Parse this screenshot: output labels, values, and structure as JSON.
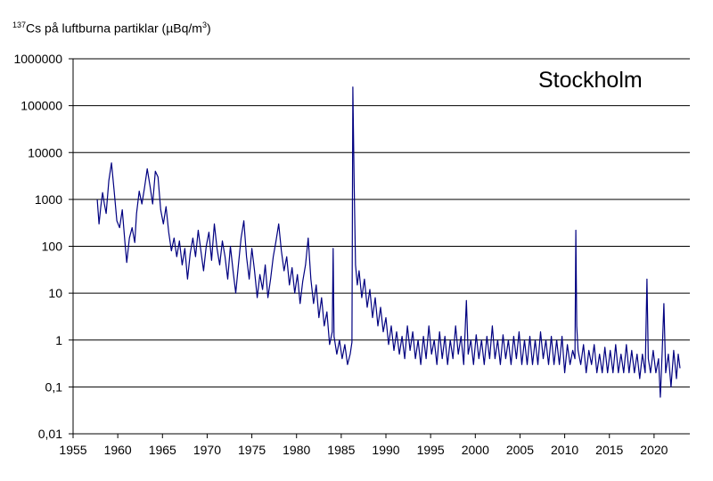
{
  "chart_data": {
    "type": "line",
    "ylabel": {
      "superscript": "137",
      "text": "Cs på luftburna  partiklar (µBq/m",
      "unit_superscript": "3",
      "close": ")"
    },
    "annotation": "Stockholm",
    "y_scale": "log",
    "ylim": [
      0.01,
      1000000
    ],
    "xlim": [
      1955,
      2024
    ],
    "grid": "horizontal",
    "y_ticks": [
      {
        "value": 1000000,
        "label": "1000000"
      },
      {
        "value": 100000,
        "label": "100000"
      },
      {
        "value": 10000,
        "label": "10000"
      },
      {
        "value": 1000,
        "label": "1000"
      },
      {
        "value": 100,
        "label": "100"
      },
      {
        "value": 10,
        "label": "10"
      },
      {
        "value": 1,
        "label": "1"
      },
      {
        "value": 0.1,
        "label": "0,1"
      },
      {
        "value": 0.01,
        "label": "0,01"
      }
    ],
    "x_ticks": [
      1955,
      1960,
      1965,
      1970,
      1975,
      1980,
      1985,
      1990,
      1995,
      2000,
      2005,
      2010,
      2015,
      2020
    ],
    "series": [
      {
        "color": "#000080",
        "points": [
          [
            1957.7,
            1000
          ],
          [
            1957.9,
            300
          ],
          [
            1958.1,
            700
          ],
          [
            1958.3,
            1400
          ],
          [
            1958.5,
            800
          ],
          [
            1958.7,
            500
          ],
          [
            1959.0,
            2500
          ],
          [
            1959.3,
            6000
          ],
          [
            1959.6,
            1500
          ],
          [
            1959.9,
            350
          ],
          [
            1960.2,
            250
          ],
          [
            1960.5,
            600
          ],
          [
            1960.8,
            120
          ],
          [
            1961.0,
            45
          ],
          [
            1961.3,
            150
          ],
          [
            1961.6,
            250
          ],
          [
            1961.9,
            120
          ],
          [
            1962.1,
            500
          ],
          [
            1962.4,
            1500
          ],
          [
            1962.7,
            800
          ],
          [
            1963.0,
            1800
          ],
          [
            1963.3,
            4500
          ],
          [
            1963.6,
            2000
          ],
          [
            1963.9,
            800
          ],
          [
            1964.2,
            4000
          ],
          [
            1964.5,
            3000
          ],
          [
            1964.8,
            600
          ],
          [
            1965.1,
            300
          ],
          [
            1965.4,
            700
          ],
          [
            1965.7,
            200
          ],
          [
            1966.0,
            80
          ],
          [
            1966.3,
            150
          ],
          [
            1966.6,
            60
          ],
          [
            1966.9,
            130
          ],
          [
            1967.2,
            40
          ],
          [
            1967.5,
            90
          ],
          [
            1967.8,
            20
          ],
          [
            1968.1,
            70
          ],
          [
            1968.4,
            150
          ],
          [
            1968.7,
            60
          ],
          [
            1969.0,
            220
          ],
          [
            1969.3,
            80
          ],
          [
            1969.6,
            30
          ],
          [
            1969.9,
            100
          ],
          [
            1970.2,
            200
          ],
          [
            1970.5,
            50
          ],
          [
            1970.8,
            300
          ],
          [
            1971.1,
            90
          ],
          [
            1971.4,
            40
          ],
          [
            1971.7,
            130
          ],
          [
            1972.0,
            60
          ],
          [
            1972.3,
            20
          ],
          [
            1972.6,
            100
          ],
          [
            1972.9,
            30
          ],
          [
            1973.2,
            10
          ],
          [
            1973.5,
            40
          ],
          [
            1973.8,
            150
          ],
          [
            1974.1,
            350
          ],
          [
            1974.4,
            60
          ],
          [
            1974.7,
            20
          ],
          [
            1975.0,
            90
          ],
          [
            1975.3,
            30
          ],
          [
            1975.6,
            8
          ],
          [
            1975.9,
            25
          ],
          [
            1976.2,
            12
          ],
          [
            1976.5,
            40
          ],
          [
            1976.8,
            8
          ],
          [
            1977.1,
            20
          ],
          [
            1977.4,
            60
          ],
          [
            1977.7,
            130
          ],
          [
            1978.0,
            300
          ],
          [
            1978.3,
            80
          ],
          [
            1978.6,
            30
          ],
          [
            1978.9,
            60
          ],
          [
            1979.2,
            15
          ],
          [
            1979.5,
            35
          ],
          [
            1979.8,
            10
          ],
          [
            1980.1,
            25
          ],
          [
            1980.4,
            6
          ],
          [
            1980.7,
            18
          ],
          [
            1981.0,
            40
          ],
          [
            1981.3,
            150
          ],
          [
            1981.6,
            20
          ],
          [
            1981.9,
            6
          ],
          [
            1982.2,
            15
          ],
          [
            1982.5,
            3
          ],
          [
            1982.8,
            8
          ],
          [
            1983.1,
            2
          ],
          [
            1983.4,
            4
          ],
          [
            1983.7,
            0.8
          ],
          [
            1984.0,
            1.5
          ],
          [
            1984.1,
            90
          ],
          [
            1984.2,
            1.2
          ],
          [
            1984.5,
            0.5
          ],
          [
            1984.8,
            1.0
          ],
          [
            1985.1,
            0.4
          ],
          [
            1985.4,
            0.8
          ],
          [
            1985.7,
            0.3
          ],
          [
            1986.0,
            0.5
          ],
          [
            1986.2,
            0.9
          ],
          [
            1986.3,
            250000
          ],
          [
            1986.45,
            2000
          ],
          [
            1986.6,
            40
          ],
          [
            1986.8,
            15
          ],
          [
            1987.0,
            30
          ],
          [
            1987.3,
            8
          ],
          [
            1987.6,
            20
          ],
          [
            1987.9,
            5
          ],
          [
            1988.2,
            12
          ],
          [
            1988.5,
            3
          ],
          [
            1988.8,
            8
          ],
          [
            1989.1,
            2
          ],
          [
            1989.4,
            5
          ],
          [
            1989.7,
            1.5
          ],
          [
            1990.0,
            3
          ],
          [
            1990.3,
            0.8
          ],
          [
            1990.6,
            2
          ],
          [
            1990.9,
            0.6
          ],
          [
            1991.2,
            1.5
          ],
          [
            1991.5,
            0.5
          ],
          [
            1991.8,
            1.2
          ],
          [
            1992.1,
            0.4
          ],
          [
            1992.4,
            2
          ],
          [
            1992.7,
            0.6
          ],
          [
            1993.0,
            1.5
          ],
          [
            1993.3,
            0.4
          ],
          [
            1993.6,
            1.0
          ],
          [
            1993.9,
            0.3
          ],
          [
            1994.2,
            1.2
          ],
          [
            1994.5,
            0.4
          ],
          [
            1994.8,
            2
          ],
          [
            1995.1,
            0.5
          ],
          [
            1995.4,
            1.0
          ],
          [
            1995.7,
            0.3
          ],
          [
            1996.0,
            1.5
          ],
          [
            1996.3,
            0.4
          ],
          [
            1996.6,
            1.2
          ],
          [
            1996.9,
            0.3
          ],
          [
            1997.2,
            1.0
          ],
          [
            1997.5,
            0.4
          ],
          [
            1997.8,
            2
          ],
          [
            1998.1,
            0.5
          ],
          [
            1998.4,
            1.2
          ],
          [
            1998.7,
            0.3
          ],
          [
            1999.0,
            7
          ],
          [
            1999.2,
            0.5
          ],
          [
            1999.5,
            1.0
          ],
          [
            1999.8,
            0.3
          ],
          [
            2000.1,
            1.3
          ],
          [
            2000.4,
            0.4
          ],
          [
            2000.7,
            1.0
          ],
          [
            2001.0,
            0.3
          ],
          [
            2001.3,
            1.2
          ],
          [
            2001.6,
            0.4
          ],
          [
            2001.9,
            2
          ],
          [
            2002.2,
            0.4
          ],
          [
            2002.5,
            1.0
          ],
          [
            2002.8,
            0.3
          ],
          [
            2003.1,
            1.3
          ],
          [
            2003.4,
            0.4
          ],
          [
            2003.7,
            1.0
          ],
          [
            2004.0,
            0.3
          ],
          [
            2004.3,
            1.2
          ],
          [
            2004.6,
            0.4
          ],
          [
            2004.9,
            1.5
          ],
          [
            2005.2,
            0.3
          ],
          [
            2005.5,
            1.0
          ],
          [
            2005.8,
            0.3
          ],
          [
            2006.1,
            1.2
          ],
          [
            2006.4,
            0.3
          ],
          [
            2006.7,
            1.0
          ],
          [
            2007.0,
            0.3
          ],
          [
            2007.3,
            1.5
          ],
          [
            2007.6,
            0.4
          ],
          [
            2007.9,
            1.0
          ],
          [
            2008.2,
            0.3
          ],
          [
            2008.5,
            1.2
          ],
          [
            2008.8,
            0.3
          ],
          [
            2009.1,
            1.0
          ],
          [
            2009.4,
            0.3
          ],
          [
            2009.7,
            1.2
          ],
          [
            2010.0,
            0.2
          ],
          [
            2010.3,
            0.8
          ],
          [
            2010.6,
            0.3
          ],
          [
            2010.9,
            0.6
          ],
          [
            2011.15,
            0.4
          ],
          [
            2011.25,
            220
          ],
          [
            2011.35,
            2
          ],
          [
            2011.5,
            0.6
          ],
          [
            2011.8,
            0.3
          ],
          [
            2012.1,
            0.8
          ],
          [
            2012.4,
            0.2
          ],
          [
            2012.7,
            0.6
          ],
          [
            2013.0,
            0.3
          ],
          [
            2013.3,
            0.8
          ],
          [
            2013.6,
            0.2
          ],
          [
            2013.9,
            0.5
          ],
          [
            2014.2,
            0.2
          ],
          [
            2014.5,
            0.7
          ],
          [
            2014.8,
            0.2
          ],
          [
            2015.1,
            0.6
          ],
          [
            2015.4,
            0.2
          ],
          [
            2015.7,
            0.8
          ],
          [
            2016.0,
            0.2
          ],
          [
            2016.3,
            0.5
          ],
          [
            2016.6,
            0.2
          ],
          [
            2016.9,
            0.8
          ],
          [
            2017.2,
            0.2
          ],
          [
            2017.5,
            0.6
          ],
          [
            2017.8,
            0.2
          ],
          [
            2018.1,
            0.5
          ],
          [
            2018.4,
            0.15
          ],
          [
            2018.7,
            0.5
          ],
          [
            2019.0,
            0.2
          ],
          [
            2019.2,
            20
          ],
          [
            2019.35,
            0.4
          ],
          [
            2019.6,
            0.2
          ],
          [
            2019.9,
            0.6
          ],
          [
            2020.2,
            0.2
          ],
          [
            2020.5,
            0.4
          ],
          [
            2020.7,
            0.06
          ],
          [
            2020.9,
            0.5
          ],
          [
            2021.1,
            6
          ],
          [
            2021.3,
            0.2
          ],
          [
            2021.6,
            0.5
          ],
          [
            2021.9,
            0.1
          ],
          [
            2022.2,
            0.6
          ],
          [
            2022.5,
            0.15
          ],
          [
            2022.7,
            0.5
          ],
          [
            2022.9,
            0.25
          ]
        ]
      }
    ]
  }
}
